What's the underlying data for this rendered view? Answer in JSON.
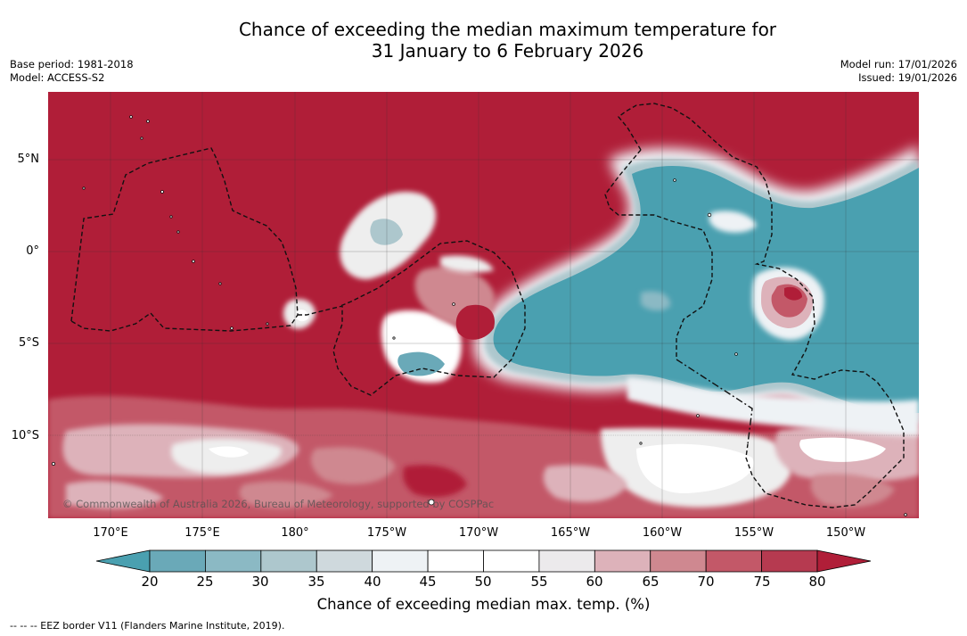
{
  "title_line1": "Chance of exceeding the median maximum temperature for",
  "title_line2": "31 January to 6 February 2026",
  "base_period": "Base period: 1981-2018",
  "model": "Model: ACCESS-S2",
  "model_run": "Model run: 17/01/2026",
  "issued": "Issued: 19/01/2026",
  "copyright": "© Commonwealth of Australia 2026, Bureau of Meteorology, supported by COSPPac",
  "latitudes": [
    "5°N",
    "0°",
    "5°S",
    "10°S"
  ],
  "longitudes": [
    "170°E",
    "175°E",
    "180°",
    "175°W",
    "170°W",
    "165°W",
    "160°W",
    "155°W",
    "150°W"
  ],
  "colorbar": {
    "ticks": [
      "20",
      "25",
      "30",
      "35",
      "40",
      "45",
      "50",
      "55",
      "60",
      "65",
      "70",
      "75",
      "80"
    ],
    "colors": [
      "#4aa0b0",
      "#6aa9b8",
      "#8bb9c4",
      "#adc7cd",
      "#cfd9dd",
      "#eef2f5",
      "#ffffff",
      "#ffffff",
      "#eceaec",
      "#ddb2ba",
      "#cf8890",
      "#c35868",
      "#b63a50",
      "#b01e38"
    ],
    "title": "Chance of exceeding median max. temp. (%)"
  },
  "footnote": "--  --  -- EEZ border V11 (Flanders Marine Institute, 2019)."
}
